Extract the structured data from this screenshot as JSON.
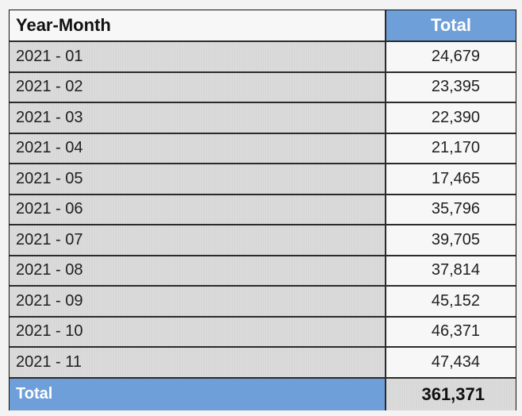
{
  "table": {
    "headers": [
      "Year-Month",
      "Total"
    ],
    "rows": [
      {
        "year_month": "2021 - 01",
        "total": "24,679"
      },
      {
        "year_month": "2021 - 02",
        "total": "23,395"
      },
      {
        "year_month": "2021 - 03",
        "total": "22,390"
      },
      {
        "year_month": "2021 - 04",
        "total": "21,170"
      },
      {
        "year_month": "2021 - 05",
        "total": "17,465"
      },
      {
        "year_month": "2021 - 06",
        "total": "35,796"
      },
      {
        "year_month": "2021 - 07",
        "total": "39,705"
      },
      {
        "year_month": "2021 - 08",
        "total": "37,814"
      },
      {
        "year_month": "2021 - 09",
        "total": "45,152"
      },
      {
        "year_month": "2021 - 10",
        "total": "46,371"
      },
      {
        "year_month": "2021 - 11",
        "total": "47,434"
      }
    ],
    "footer": {
      "label": "Total",
      "value": "361,371"
    }
  },
  "colors": {
    "header_blue": "#6f9fd8",
    "row_label_gray": "#d7d7d7",
    "value_white": "#f7f7f7",
    "border_dark": "#2b2b2b"
  }
}
